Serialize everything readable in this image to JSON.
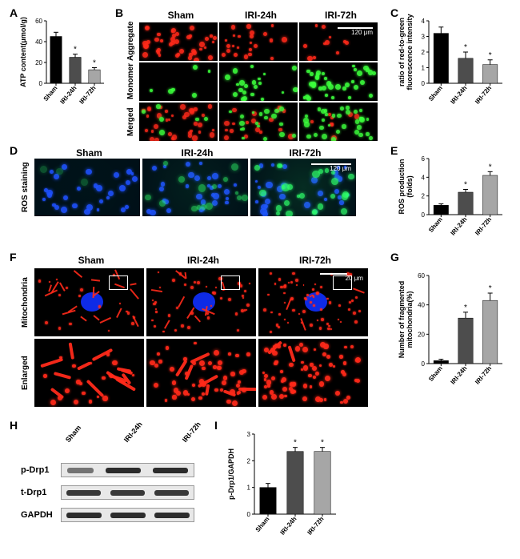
{
  "groups": [
    "Sham",
    "IRI-24h",
    "IRI-72h"
  ],
  "panelA": {
    "label": "A",
    "type": "bar",
    "ylabel": "ATP content(μmol/g)",
    "ylim": [
      0,
      60
    ],
    "ytick_step": 20,
    "values": [
      45,
      25,
      13
    ],
    "errors": [
      4,
      3,
      2
    ],
    "stars": [
      false,
      true,
      true
    ],
    "bar_colors": [
      "#000000",
      "#4d4d4d",
      "#a6a6a6"
    ],
    "bar_width": 0.6
  },
  "panelB": {
    "label": "B",
    "rows": [
      "Aggregate",
      "Monomer",
      "Merged"
    ],
    "scale_text": "120 μm",
    "aggregate_color": "#ff2a1a",
    "monomer_color": "#3cff3c",
    "aggregate_intensity": [
      0.9,
      0.45,
      0.15
    ],
    "monomer_intensity": [
      0.08,
      0.45,
      0.85
    ]
  },
  "panelC": {
    "label": "C",
    "type": "bar",
    "ylabel": "ratio of red-to-green\nfluorescence intensity",
    "ylim": [
      0,
      4.0
    ],
    "ytick_step": 1.0,
    "values": [
      3.2,
      1.6,
      1.2
    ],
    "errors": [
      0.4,
      0.4,
      0.3
    ],
    "stars": [
      false,
      true,
      true
    ],
    "bar_colors": [
      "#000000",
      "#4d4d4d",
      "#a6a6a6"
    ]
  },
  "panelD": {
    "label": "D",
    "row_label": "ROS staining",
    "scale_text": "120 μm",
    "nuclei_color": "#1e50ff",
    "ros_color": "#2eff6a",
    "ros_intensity": [
      0.1,
      0.5,
      0.9
    ]
  },
  "panelE": {
    "label": "E",
    "type": "bar",
    "ylabel": "ROS production\n(folds)",
    "ylim": [
      0,
      6.0
    ],
    "ytick_step": 2.0,
    "values": [
      1.0,
      2.4,
      4.2
    ],
    "errors": [
      0.15,
      0.3,
      0.4
    ],
    "stars": [
      false,
      true,
      true
    ],
    "bar_colors": [
      "#000000",
      "#4d4d4d",
      "#a6a6a6"
    ]
  },
  "panelF": {
    "label": "F",
    "rows": [
      "Mitochondria",
      "Enlarged"
    ],
    "scale_text": "20 μm",
    "mito_color": "#ff2a1a",
    "nuclei_color": "#1030ff",
    "frag": [
      0.05,
      0.5,
      0.85
    ]
  },
  "panelG": {
    "label": "G",
    "type": "bar",
    "ylabel": "Number of fragmented\nmitochondria(%)",
    "ylim": [
      0,
      60
    ],
    "ytick_step": 20,
    "values": [
      2,
      31,
      43
    ],
    "errors": [
      1,
      4,
      5
    ],
    "stars": [
      false,
      true,
      true
    ],
    "bar_colors": [
      "#000000",
      "#4d4d4d",
      "#a6a6a6"
    ]
  },
  "panelH": {
    "label": "H",
    "proteins": [
      "p-Drp1",
      "t-Drp1",
      "GAPDH"
    ],
    "band_intensity": {
      "p-Drp1": [
        0.4,
        1.0,
        1.0
      ],
      "t-Drp1": [
        0.9,
        0.9,
        0.9
      ],
      "GAPDH": [
        1.0,
        1.0,
        1.0
      ]
    }
  },
  "panelI": {
    "label": "I",
    "type": "bar",
    "ylabel": "p-Drp1/GAPDH",
    "ylim": [
      0,
      3.0
    ],
    "ytick_step": 1.0,
    "values": [
      1.0,
      2.35,
      2.35
    ],
    "errors": [
      0.15,
      0.15,
      0.15
    ],
    "stars": [
      false,
      true,
      true
    ],
    "bar_colors": [
      "#000000",
      "#4d4d4d",
      "#a6a6a6"
    ]
  }
}
